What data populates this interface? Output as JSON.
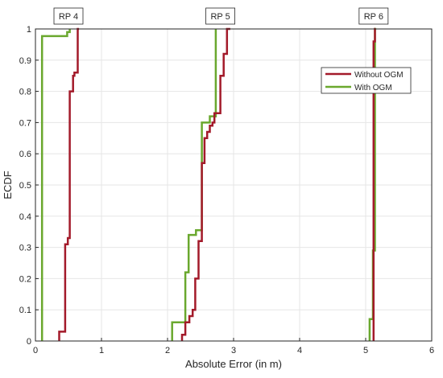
{
  "chart_data": {
    "type": "line",
    "title": "",
    "xlabel": "Absolute Error (in m)",
    "ylabel": "ECDF",
    "xlim": [
      0,
      6
    ],
    "ylim": [
      0,
      1
    ],
    "xticks": [
      "0",
      "1",
      "2",
      "3",
      "4",
      "5",
      "6"
    ],
    "yticks": [
      "0",
      "0.1",
      "0.2",
      "0.3",
      "0.4",
      "0.5",
      "0.6",
      "0.7",
      "0.8",
      "0.9",
      "1"
    ],
    "grid": true,
    "legend_position": "top-right",
    "annotations": [
      "RP 4",
      "RP 5",
      "RP 6"
    ],
    "annotation_x": [
      0.5,
      2.8,
      5.12
    ],
    "colors": {
      "without_ogm": "#a31a2a",
      "with_ogm": "#6aa82e",
      "grid": "#e6e6e6",
      "axis": "#262626"
    },
    "series": [
      {
        "name": "Without OGM",
        "group": "RP 4",
        "x": [
          0.36,
          0.36,
          0.45,
          0.45,
          0.49,
          0.49,
          0.52,
          0.52,
          0.57,
          0.57,
          0.59,
          0.59,
          0.64,
          0.64,
          0.66
        ],
        "y": [
          0,
          0.03,
          0.03,
          0.31,
          0.31,
          0.33,
          0.33,
          0.8,
          0.8,
          0.85,
          0.85,
          0.86,
          0.86,
          1,
          1
        ]
      },
      {
        "name": "With OGM",
        "group": "RP 4",
        "x": [
          0.1,
          0.1,
          0.48,
          0.48,
          0.52,
          0.52
        ],
        "y": [
          0,
          0.977,
          0.977,
          0.99,
          0.99,
          1
        ]
      },
      {
        "name": "Without OGM",
        "group": "RP 5",
        "x": [
          2.22,
          2.22,
          2.27,
          2.27,
          2.33,
          2.33,
          2.38,
          2.38,
          2.42,
          2.42,
          2.47,
          2.47,
          2.52,
          2.52,
          2.56,
          2.56,
          2.6,
          2.6,
          2.64,
          2.64,
          2.68,
          2.68,
          2.71,
          2.71,
          2.8,
          2.8,
          2.85,
          2.85,
          2.9,
          2.9,
          2.95
        ],
        "y": [
          0,
          0.02,
          0.02,
          0.06,
          0.06,
          0.08,
          0.08,
          0.1,
          0.1,
          0.2,
          0.2,
          0.32,
          0.32,
          0.57,
          0.57,
          0.65,
          0.65,
          0.67,
          0.67,
          0.69,
          0.69,
          0.7,
          0.7,
          0.73,
          0.73,
          0.85,
          0.85,
          0.92,
          0.92,
          1,
          1
        ]
      },
      {
        "name": "With OGM",
        "group": "RP 5",
        "x": [
          2.07,
          2.07,
          2.27,
          2.27,
          2.32,
          2.32,
          2.43,
          2.43,
          2.52,
          2.52,
          2.64,
          2.64,
          2.73,
          2.73
        ],
        "y": [
          0,
          0.06,
          0.06,
          0.22,
          0.22,
          0.34,
          0.34,
          0.355,
          0.355,
          0.7,
          0.7,
          0.72,
          0.72,
          1
        ]
      },
      {
        "name": "Without OGM",
        "group": "RP 6",
        "x": [
          5.12,
          5.12,
          5.14,
          5.14,
          5.15
        ],
        "y": [
          0,
          0.96,
          0.96,
          1,
          1
        ]
      },
      {
        "name": "With OGM",
        "group": "RP 6",
        "x": [
          5.06,
          5.06,
          5.11,
          5.11,
          5.14,
          5.14,
          5.16
        ],
        "y": [
          0,
          0.07,
          0.07,
          0.29,
          0.29,
          1,
          1
        ]
      }
    ]
  }
}
